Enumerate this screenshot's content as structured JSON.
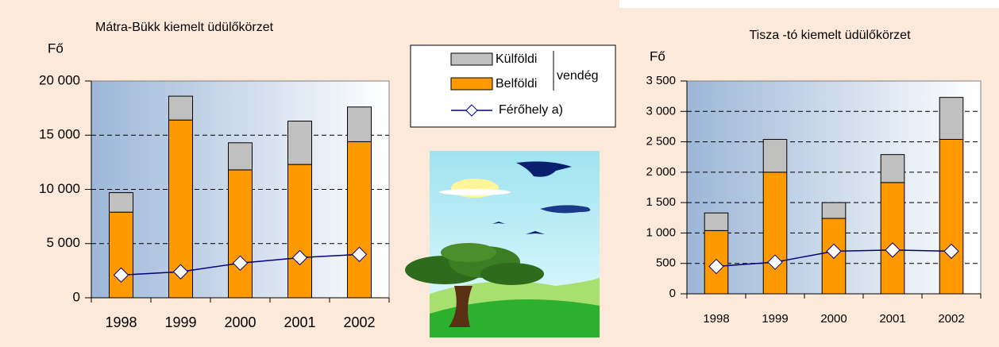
{
  "chart_data": [
    {
      "type": "bar",
      "title": "Mátra-Bükk kiemelt üdülőkörzet",
      "y_label": "Fő",
      "categories": [
        "1998",
        "1999",
        "2000",
        "2001",
        "2002"
      ],
      "legend_group": "vendég",
      "series": [
        {
          "name": "Külföldi",
          "color": "#c0c0c0",
          "style": "bar",
          "values": [
            1800,
            2200,
            2500,
            4000,
            3200
          ]
        },
        {
          "name": "Belföldi",
          "color": "#ff9900",
          "style": "bar",
          "values": [
            7900,
            16400,
            11800,
            12300,
            14400
          ]
        },
        {
          "name": "Férőhely a)",
          "color": "#000080",
          "style": "line",
          "values": [
            2100,
            2400,
            3200,
            3700,
            4000
          ]
        }
      ],
      "ylim": [
        0,
        20000
      ],
      "yticks": [
        0,
        {
          "value": 5000,
          "label": "5 000"
        },
        {
          "value": 10000,
          "label": "10 000"
        },
        {
          "value": 15000,
          "label": "15 000"
        },
        {
          "value": 20000,
          "label": "20 000"
        }
      ],
      "grid": true
    },
    {
      "type": "bar",
      "title": "Tisza -tó kiemelt üdülőkörzet",
      "y_label": "Fő",
      "categories": [
        "1998",
        "1999",
        "2000",
        "2001",
        "2002"
      ],
      "series": [
        {
          "color": "#c0c0c0",
          "style": "bar",
          "values": [
            290,
            540,
            260,
            460,
            690
          ]
        },
        {
          "color": "#ff9900",
          "style": "bar",
          "values": [
            1040,
            2000,
            1240,
            1830,
            2540
          ]
        },
        {
          "color": "#000080",
          "style": "line",
          "values": [
            450,
            520,
            700,
            720,
            700
          ]
        }
      ],
      "ylim": [
        0,
        3500
      ],
      "yticks": [
        0,
        500,
        {
          "value": 1000,
          "label": "1 000"
        },
        {
          "value": 1500,
          "label": "1 500"
        },
        {
          "value": 2000,
          "label": "2 000"
        },
        {
          "value": 2500,
          "label": "2 500"
        },
        {
          "value": 3000,
          "label": "3 000"
        },
        {
          "value": 3500,
          "label": "3 500"
        }
      ],
      "grid": true
    }
  ]
}
